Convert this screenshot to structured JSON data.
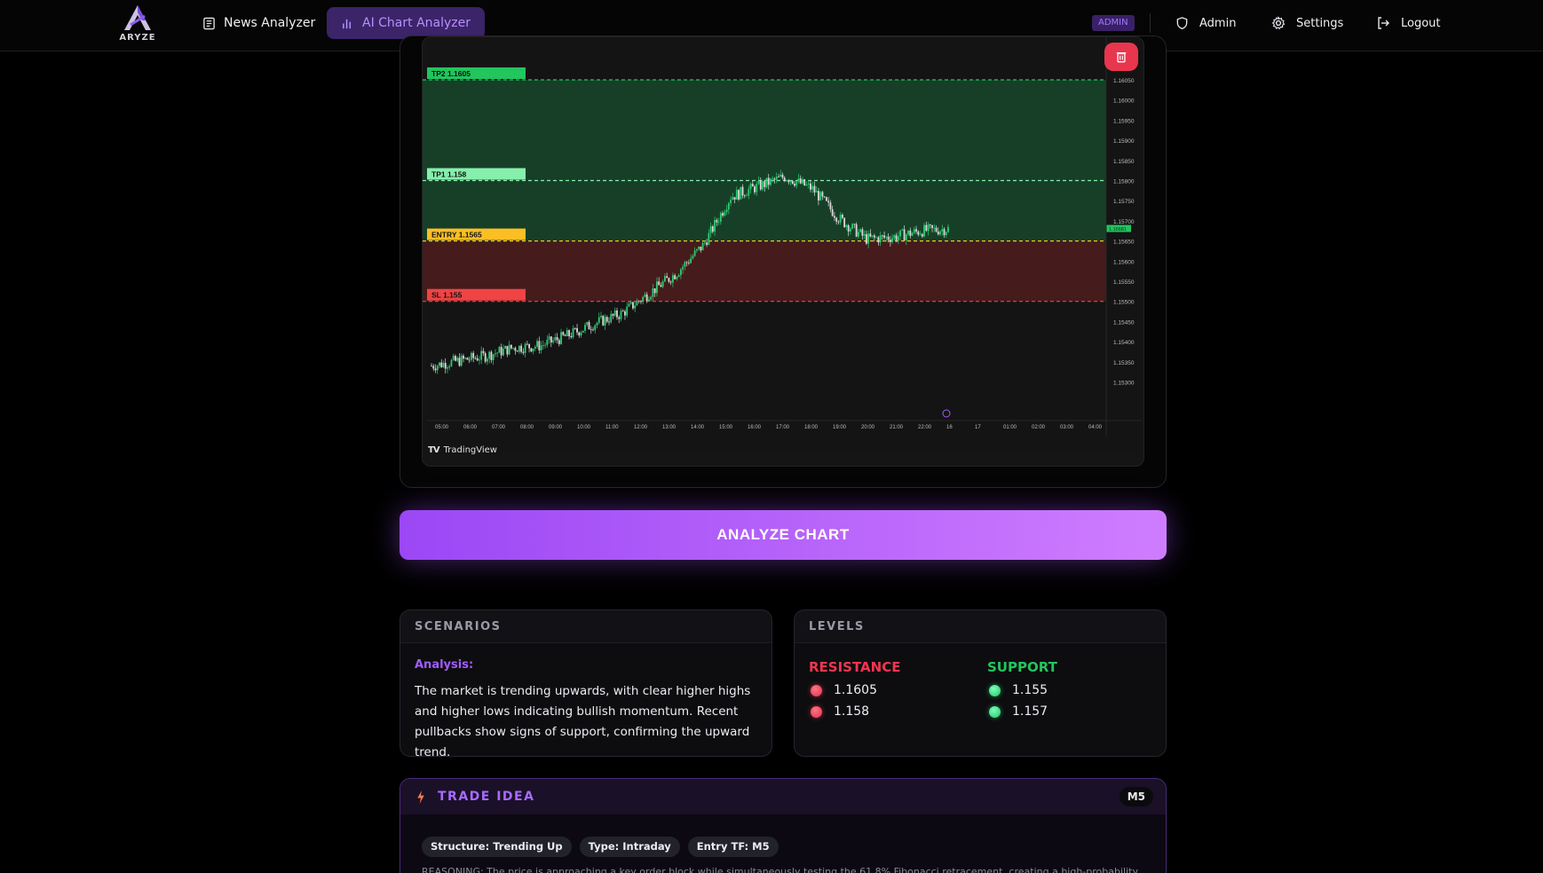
{
  "nav": {
    "logo_text": "ARYZE",
    "news_label": "News Analyzer",
    "chart_label": "AI Chart Analyzer",
    "admin_badge": "ADMIN",
    "admin_label": "Admin",
    "settings_label": "Settings",
    "logout_label": "Logout"
  },
  "chart_data": {
    "type": "candlestick",
    "watermark": "TradingView",
    "y_ticks": [
      "1.16050",
      "1.16000",
      "1.15950",
      "1.15900",
      "1.15850",
      "1.15800",
      "1.15750",
      "1.15700",
      "1.15650",
      "1.15600",
      "1.15550",
      "1.15500",
      "1.15450",
      "1.15400",
      "1.15350",
      "1.15300"
    ],
    "x_ticks": [
      "05:00",
      "06:00",
      "07:00",
      "08:00",
      "09:00",
      "10:00",
      "11:00",
      "12:00",
      "13:00",
      "14:00",
      "15:00",
      "16:00",
      "17:00",
      "18:00",
      "19:00",
      "20:00",
      "21:00",
      "22:00",
      "16",
      "17",
      "01:00",
      "02:00",
      "03:00",
      "04:00"
    ],
    "last_price_label": "1.15681",
    "levels": [
      {
        "label": "TP2 1.1605",
        "price": 1.1605,
        "color": "#22c55e"
      },
      {
        "label": "TP1 1.158",
        "price": 1.158,
        "color": "#86efac"
      },
      {
        "label": "ENTRY 1.1565",
        "price": 1.1565,
        "color": "#fbbf24"
      },
      {
        "label": "SL 1.155",
        "price": 1.155,
        "color": "#ef4444"
      }
    ],
    "close_path": [
      [
        0,
        1.1534
      ],
      [
        2,
        1.15365
      ],
      [
        3,
        1.15385
      ],
      [
        4,
        1.1539
      ],
      [
        5,
        1.15415
      ],
      [
        6,
        1.15445
      ],
      [
        7,
        1.1547
      ],
      [
        8,
        1.1552
      ],
      [
        9,
        1.1557
      ],
      [
        10,
        1.1564
      ],
      [
        11,
        1.1576
      ],
      [
        12,
        1.15785
      ],
      [
        13,
        1.1581
      ],
      [
        14,
        1.1578
      ],
      [
        15,
        1.15705
      ],
      [
        16,
        1.15655
      ],
      [
        17,
        1.1566
      ],
      [
        18,
        1.15675
      ],
      [
        19,
        1.1568
      ]
    ]
  },
  "analyze_label": "ANALYZE CHART",
  "scenarios": {
    "title": "SCENARIOS",
    "analysis_label": "Analysis:",
    "analysis_text": "The market is trending upwards, with clear higher highs and higher lows indicating bullish momentum. Recent pullbacks show signs of support, confirming the upward trend."
  },
  "levels_panel": {
    "title": "LEVELS",
    "resistance_label": "RESISTANCE",
    "support_label": "SUPPORT",
    "resistance": [
      "1.1605",
      "1.158"
    ],
    "support": [
      "1.155",
      "1.157"
    ],
    "resistance_color": "#f0364f",
    "support_color": "#22c55e"
  },
  "trade_idea": {
    "title": "TRADE IDEA",
    "timeframe": "M5",
    "chips": [
      "Structure: Trending Up",
      "Type: Intraday",
      "Entry TF: M5"
    ],
    "reasoning": "REASONING: The price is approaching a key order block while simultaneously testing the 61.8% Fibonacci retracement, creating a high-probability"
  },
  "colors": {
    "accent": "#a35cff",
    "brand_gradient": [
      "#9b47f5",
      "#cf7dff"
    ]
  }
}
